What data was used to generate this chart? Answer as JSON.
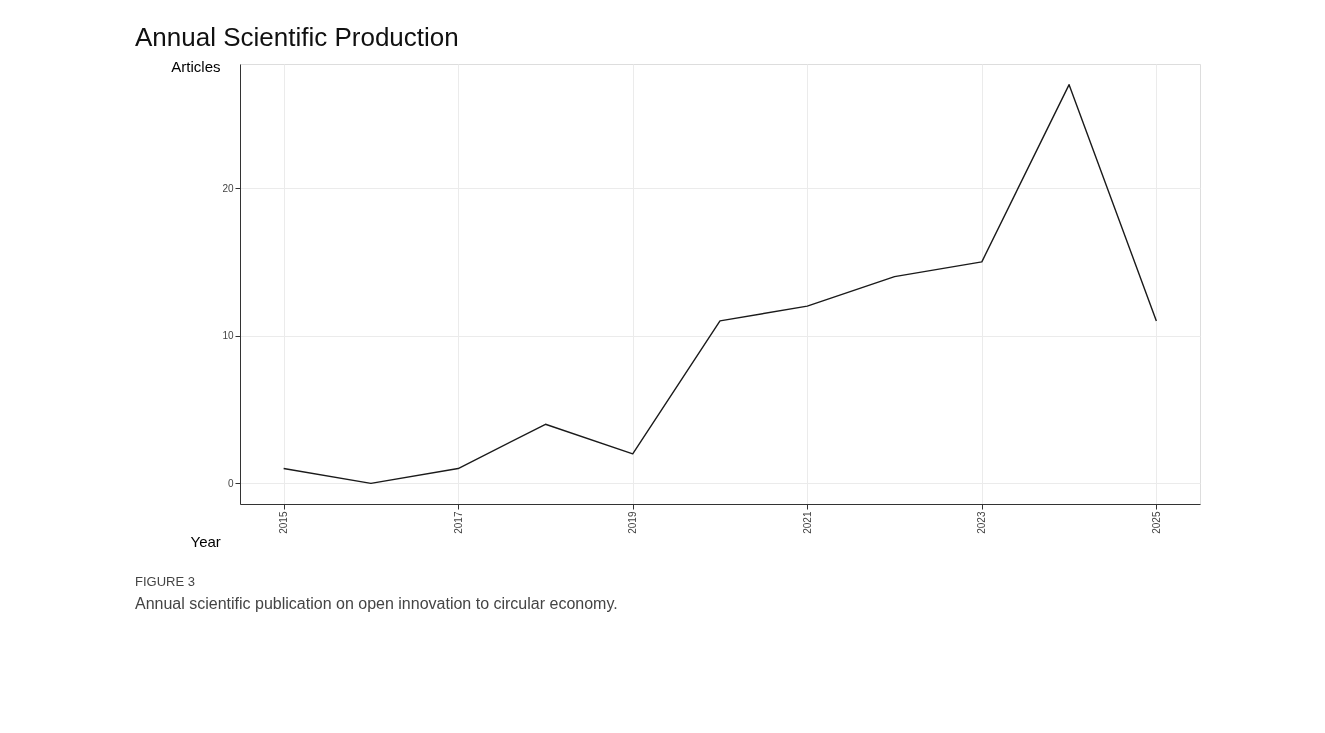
{
  "chart_data": {
    "type": "line",
    "title": "Annual Scientific Production",
    "xlabel": "Year",
    "ylabel": "Articles",
    "x": [
      2015,
      2016,
      2017,
      2018,
      2019,
      2020,
      2021,
      2022,
      2023,
      2024,
      2025
    ],
    "series": [
      {
        "color": "#1a1a1a",
        "values": [
          1,
          0,
          1,
          4,
          2,
          11,
          12,
          14,
          15,
          27,
          11
        ]
      }
    ],
    "xlim": [
      2014.5,
      2025.5
    ],
    "xticks": [
      2015,
      2017,
      2019,
      2021,
      2023,
      2025
    ],
    "ylim": [
      -1.4,
      28.4
    ],
    "yticks": [
      0,
      10,
      20
    ],
    "grid": true,
    "marker": "none",
    "line_style": "solid",
    "annotations": [
      "FIGURE 3",
      "Annual scientific publication on open innovation to circular economy."
    ]
  }
}
